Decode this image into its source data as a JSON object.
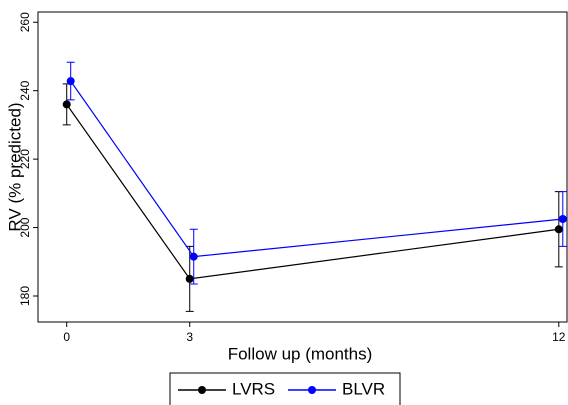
{
  "chart_data": {
    "type": "line",
    "x_label": "Follow up (months)",
    "y_label": "RV (% predicted)",
    "x": [
      0,
      3,
      12
    ],
    "series": [
      {
        "name": "LVRS",
        "color": "#000000",
        "values": [
          236,
          185,
          199.5
        ],
        "errors": [
          6,
          9.5,
          11
        ]
      },
      {
        "name": "BLVR",
        "color": "#0000ff",
        "values": [
          242.8,
          191.5,
          202.5
        ],
        "errors": [
          5.5,
          8,
          8
        ]
      }
    ],
    "xlim": [
      -0.7,
      12.2
    ],
    "xticks": [
      0,
      3,
      12
    ],
    "ylim": [
      172.4,
      263
    ],
    "yticks": [
      180,
      200,
      220,
      240,
      260
    ],
    "legend": "bottom"
  }
}
